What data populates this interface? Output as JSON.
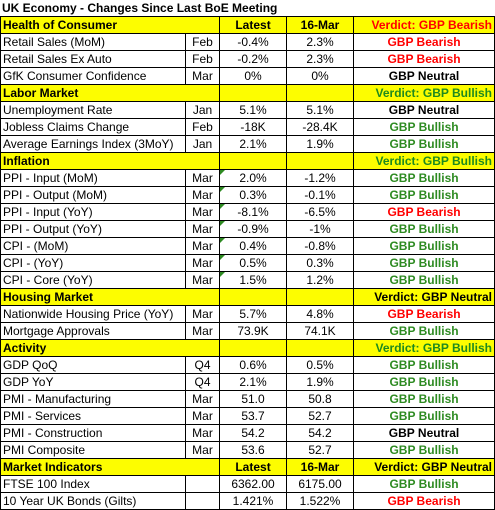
{
  "title": "UK Economy - Changes Since Last BoE Meeting",
  "sections": [
    {
      "name": "Health of Consumer",
      "col_latest": "Latest",
      "col_prev": "16-Mar",
      "verdict": "Verdict: GBP Bearish",
      "verdict_color": "red",
      "rows": [
        {
          "label": "Retail Sales (MoM)",
          "period": "Feb",
          "latest": "-0.4%",
          "prev": "2.3%",
          "signal": "GBP Bearish",
          "color": "red"
        },
        {
          "label": "Retail Sales Ex Auto",
          "period": "Feb",
          "latest": "-0.2%",
          "prev": "2.3%",
          "signal": "GBP Bearish",
          "color": "red"
        },
        {
          "label": "GfK Consumer Confidence",
          "period": "Mar",
          "latest": "0%",
          "prev": "0%",
          "signal": "GBP Neutral",
          "color": "black"
        }
      ]
    },
    {
      "name": "Labor Market",
      "col_latest": "",
      "col_prev": "",
      "verdict": "Verdict: GBP Bullish",
      "verdict_color": "green",
      "rows": [
        {
          "label": "Unemployment Rate",
          "period": "Jan",
          "latest": "5.1%",
          "prev": "5.1%",
          "signal": "GBP Neutral",
          "color": "black"
        },
        {
          "label": "Jobless Claims Change",
          "period": "Feb",
          "latest": "-18K",
          "prev": "-28.4K",
          "signal": "GBP Bullish",
          "color": "green"
        },
        {
          "label": "Average Earnings Index (3MoY)",
          "period": "Jan",
          "latest": "2.1%",
          "prev": "1.9%",
          "signal": "GBP Bullish",
          "color": "green"
        }
      ]
    },
    {
      "name": "Inflation",
      "col_latest": "",
      "col_prev": "",
      "verdict": "Verdict: GBP Bullish",
      "verdict_color": "green",
      "rows": [
        {
          "label": "PPI - Input (MoM)",
          "period": "Mar",
          "latest": "2.0%",
          "prev": "-1.2%",
          "signal": "GBP Bullish",
          "color": "green"
        },
        {
          "label": "PPI - Output (MoM)",
          "period": "Mar",
          "latest": "0.3%",
          "prev": "-0.1%",
          "signal": "GBP Bullish",
          "color": "green"
        },
        {
          "label": "PPI - Input (YoY)",
          "period": "Mar",
          "latest": "-8.1%",
          "prev": "-6.5%",
          "signal": "GBP Bearish",
          "color": "red"
        },
        {
          "label": "PPI - Output (YoY)",
          "period": "Mar",
          "latest": "-0.9%",
          "prev": "-1%",
          "signal": "GBP Bullish",
          "color": "green"
        },
        {
          "label": "CPI - (MoM)",
          "period": "Mar",
          "latest": "0.4%",
          "prev": "-0.8%",
          "signal": "GBP Bullish",
          "color": "green"
        },
        {
          "label": "CPI - (YoY)",
          "period": "Mar",
          "latest": "0.5%",
          "prev": "0.3%",
          "signal": "GBP Bullish",
          "color": "green"
        },
        {
          "label": "CPI - Core (YoY)",
          "period": "Mar",
          "latest": "1.5%",
          "prev": "1.2%",
          "signal": "GBP Bullish",
          "color": "green"
        }
      ]
    },
    {
      "name": "Housing Market",
      "col_latest": "",
      "col_prev": "",
      "verdict": "Verdict: GBP Neutral",
      "verdict_color": "black",
      "rows": [
        {
          "label": "Nationwide Housing Price (YoY)",
          "period": "Mar",
          "latest": "5.7%",
          "prev": "4.8%",
          "signal": "GBP Bearish",
          "color": "red"
        },
        {
          "label": "Mortgage Approvals",
          "period": "Mar",
          "latest": "73.9K",
          "prev": "74.1K",
          "signal": "GBP Bullish",
          "color": "green"
        }
      ]
    },
    {
      "name": "Activity",
      "col_latest": "",
      "col_prev": "",
      "verdict": "Verdict: GBP Bullish",
      "verdict_color": "green",
      "rows": [
        {
          "label": "GDP QoQ",
          "period": "Q4",
          "latest": "0.6%",
          "prev": "0.5%",
          "signal": "GBP Bullish",
          "color": "green"
        },
        {
          "label": "GDP YoY",
          "period": "Q4",
          "latest": "2.1%",
          "prev": "1.9%",
          "signal": "GBP Bullish",
          "color": "green"
        },
        {
          "label": "PMI - Manufacturing",
          "period": "Mar",
          "latest": "51.0",
          "prev": "50.8",
          "signal": "GBP Bullish",
          "color": "green"
        },
        {
          "label": "PMI - Services",
          "period": "Mar",
          "latest": "53.7",
          "prev": "52.7",
          "signal": "GBP Bullish",
          "color": "green"
        },
        {
          "label": "PMI - Construction",
          "period": "Mar",
          "latest": "54.2",
          "prev": "54.2",
          "signal": "GBP Neutral",
          "color": "black"
        },
        {
          "label": "PMI Composite",
          "period": "Mar",
          "latest": "53.6",
          "prev": "52.7",
          "signal": "GBP Bullish",
          "color": "green"
        }
      ]
    },
    {
      "name": "Market Indicators",
      "col_latest": "Latest",
      "col_prev": "16-Mar",
      "verdict": "Verdict: GBP Neutral",
      "verdict_color": "black",
      "rows": [
        {
          "label": "FTSE 100 Index",
          "period": "",
          "latest": "6362.00",
          "prev": "6175.00",
          "signal": "GBP Bullish",
          "color": "green"
        },
        {
          "label": "10 Year UK Bonds (Gilts)",
          "period": "",
          "latest": "1.421%",
          "prev": "1.522%",
          "signal": "GBP Bearish",
          "color": "red"
        }
      ]
    }
  ],
  "colors": {
    "header_bg": "#fdfd00",
    "bullish": "#2e8b22",
    "bearish": "#ff0000",
    "neutral": "#000000"
  }
}
